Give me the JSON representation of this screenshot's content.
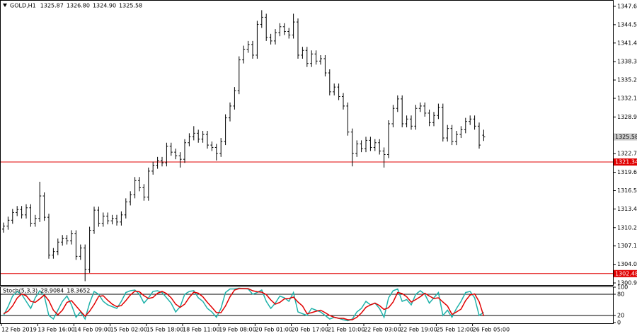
{
  "chart_data": [
    {
      "type": "ohlc",
      "title": "GOLD,H1",
      "last_bar_labels": [
        "1325.87",
        "1326.80",
        "1324.90",
        "1325.58"
      ],
      "color": "#000000",
      "ylim": [
        1300.54,
        1348.6
      ],
      "yticks": [
        1347.65,
        1344.55,
        1341.45,
        {
          "value": 1338.3,
          "label": "1338.30"
        },
        {
          "value": 1335.2,
          "label": "1335.20"
        },
        {
          "value": 1332.1,
          "label": "1332.10"
        },
        1328.95,
        1322.75,
        {
          "value": 1319.6,
          "label": "1319.60"
        },
        {
          "value": 1316.5,
          "label": "1316.50"
        },
        {
          "value": 1313.4,
          "label": "1313.40"
        },
        1310.25,
        1307.15,
        1304.05,
        {
          "value": 1300.9,
          "label": "1300.90"
        }
      ],
      "hlines": [
        {
          "value": 1321.34,
          "color": "#e00000"
        },
        {
          "value": 1302.48,
          "color": "#e00000"
        }
      ],
      "categories": [
        "12 Feb 2019",
        null,
        null,
        null,
        null,
        null,
        null,
        null,
        "13 Feb 16:00",
        null,
        null,
        null,
        null,
        null,
        null,
        null,
        "14 Feb 09:00",
        null,
        null,
        null,
        null,
        null,
        null,
        null,
        "15 Feb 02:00",
        null,
        null,
        null,
        null,
        null,
        null,
        null,
        "15 Feb 18:00",
        null,
        null,
        null,
        null,
        null,
        null,
        null,
        "18 Feb 11:00",
        null,
        null,
        null,
        null,
        null,
        null,
        null,
        "19 Feb 08:00",
        null,
        null,
        null,
        null,
        null,
        null,
        null,
        "20 Feb 01:00",
        null,
        null,
        null,
        null,
        null,
        null,
        null,
        "20 Feb 17:00",
        null,
        null,
        null,
        null,
        null,
        null,
        null,
        "21 Feb 10:00",
        null,
        null,
        null,
        null,
        null,
        null,
        null,
        "22 Feb 03:00",
        null,
        null,
        null,
        null,
        null,
        null,
        null,
        "22 Feb 19:00",
        null,
        null,
        null,
        null,
        null,
        null,
        null,
        "25 Feb 12:00",
        null,
        null,
        null,
        null,
        null,
        null,
        null,
        "26 Feb 05:00",
        null,
        null
      ],
      "ohlc": [
        [
          1310.0,
          1311.1,
          1309.4,
          1310.5
        ],
        [
          1310.5,
          1312.1,
          1309.9,
          1311.5
        ],
        [
          1311.5,
          1313.4,
          1310.9,
          1312.8
        ],
        [
          1312.8,
          1313.9,
          1312.2,
          1313.3
        ],
        [
          1313.3,
          1313.9,
          1311.8,
          1312.4
        ],
        [
          1312.4,
          1314.2,
          1311.8,
          1313.6
        ],
        [
          1313.6,
          1314.2,
          1310.4,
          1311.0
        ],
        [
          1311.0,
          1312.4,
          1310.4,
          1311.8
        ],
        [
          1311.8,
          1318.0,
          1311.2,
          1315.6
        ],
        [
          1315.6,
          1316.2,
          1311.4,
          1312.0
        ],
        [
          1312.0,
          1312.6,
          1305.0,
          1305.6
        ],
        [
          1305.6,
          1306.8,
          1305.0,
          1306.2
        ],
        [
          1306.2,
          1308.4,
          1305.6,
          1307.8
        ],
        [
          1307.8,
          1309.0,
          1307.2,
          1308.4
        ],
        [
          1308.4,
          1309.0,
          1307.4,
          1308.0
        ],
        [
          1308.0,
          1309.8,
          1307.4,
          1309.2
        ],
        [
          1309.2,
          1309.8,
          1304.8,
          1305.4
        ],
        [
          1305.4,
          1307.4,
          1304.8,
          1306.8
        ],
        [
          1306.8,
          1307.4,
          1301.2,
          1303.2
        ],
        [
          1303.2,
          1310.4,
          1302.6,
          1309.8
        ],
        [
          1309.8,
          1313.8,
          1309.2,
          1313.2
        ],
        [
          1313.2,
          1313.8,
          1310.4,
          1311.0
        ],
        [
          1311.0,
          1312.8,
          1310.4,
          1312.2
        ],
        [
          1312.2,
          1312.8,
          1310.8,
          1311.4
        ],
        [
          1311.4,
          1312.4,
          1310.8,
          1311.8
        ],
        [
          1311.8,
          1312.4,
          1310.6,
          1311.2
        ],
        [
          1311.2,
          1313.0,
          1310.6,
          1312.4
        ],
        [
          1312.4,
          1315.2,
          1311.8,
          1314.6
        ],
        [
          1314.6,
          1316.4,
          1314.0,
          1315.8
        ],
        [
          1315.8,
          1318.8,
          1315.2,
          1318.2
        ],
        [
          1318.2,
          1318.8,
          1316.4,
          1317.0
        ],
        [
          1317.0,
          1317.6,
          1314.8,
          1315.4
        ],
        [
          1315.4,
          1320.4,
          1314.8,
          1319.8
        ],
        [
          1319.8,
          1321.4,
          1319.2,
          1320.8
        ],
        [
          1320.8,
          1322.2,
          1320.2,
          1321.6
        ],
        [
          1321.6,
          1322.2,
          1320.6,
          1321.2
        ],
        [
          1321.2,
          1324.6,
          1320.6,
          1324.0
        ],
        [
          1324.0,
          1324.6,
          1322.4,
          1323.0
        ],
        [
          1323.0,
          1323.6,
          1321.8,
          1322.4
        ],
        [
          1322.4,
          1323.0,
          1320.4,
          1321.8
        ],
        [
          1321.8,
          1325.2,
          1321.2,
          1324.6
        ],
        [
          1324.6,
          1326.2,
          1324.0,
          1325.6
        ],
        [
          1325.6,
          1327.4,
          1325.0,
          1326.2
        ],
        [
          1326.2,
          1326.8,
          1324.6,
          1325.2
        ],
        [
          1325.2,
          1326.6,
          1324.6,
          1326.0
        ],
        [
          1326.0,
          1326.6,
          1323.6,
          1324.2
        ],
        [
          1324.2,
          1324.8,
          1323.2,
          1323.8
        ],
        [
          1323.8,
          1324.4,
          1321.6,
          1322.8
        ],
        [
          1322.8,
          1325.4,
          1322.2,
          1324.8
        ],
        [
          1324.8,
          1329.4,
          1324.2,
          1328.8
        ],
        [
          1328.8,
          1331.4,
          1328.2,
          1330.8
        ],
        [
          1330.8,
          1334.0,
          1330.2,
          1333.4
        ],
        [
          1333.4,
          1339.2,
          1332.8,
          1338.6
        ],
        [
          1338.6,
          1341.0,
          1338.0,
          1340.4
        ],
        [
          1340.4,
          1341.8,
          1339.8,
          1341.2
        ],
        [
          1341.2,
          1341.8,
          1338.8,
          1339.4
        ],
        [
          1339.4,
          1345.2,
          1338.8,
          1344.6
        ],
        [
          1344.6,
          1347.0,
          1344.0,
          1345.8
        ],
        [
          1345.8,
          1346.4,
          1341.8,
          1342.4
        ],
        [
          1342.4,
          1343.0,
          1341.2,
          1341.8
        ],
        [
          1341.8,
          1343.8,
          1341.2,
          1343.2
        ],
        [
          1343.2,
          1344.8,
          1342.6,
          1344.2
        ],
        [
          1344.2,
          1344.8,
          1342.8,
          1343.4
        ],
        [
          1343.4,
          1344.0,
          1342.2,
          1342.8
        ],
        [
          1342.8,
          1346.4,
          1342.2,
          1345.0
        ],
        [
          1345.0,
          1345.6,
          1338.8,
          1339.4
        ],
        [
          1339.4,
          1340.8,
          1338.8,
          1340.2
        ],
        [
          1340.2,
          1340.8,
          1337.4,
          1338.0
        ],
        [
          1338.0,
          1340.2,
          1337.4,
          1339.6
        ],
        [
          1339.6,
          1340.2,
          1337.8,
          1338.4
        ],
        [
          1338.4,
          1339.4,
          1337.8,
          1338.8
        ],
        [
          1338.8,
          1339.4,
          1335.8,
          1336.4
        ],
        [
          1336.4,
          1337.0,
          1332.6,
          1333.2
        ],
        [
          1333.2,
          1334.6,
          1332.6,
          1334.0
        ],
        [
          1334.0,
          1334.6,
          1331.8,
          1332.4
        ],
        [
          1332.4,
          1333.0,
          1330.2,
          1330.8
        ],
        [
          1330.8,
          1331.4,
          1325.8,
          1326.4
        ],
        [
          1326.4,
          1327.0,
          1320.6,
          1322.8
        ],
        [
          1322.8,
          1325.0,
          1322.2,
          1324.4
        ],
        [
          1324.4,
          1325.0,
          1323.0,
          1323.6
        ],
        [
          1323.6,
          1325.6,
          1323.0,
          1325.0
        ],
        [
          1325.0,
          1325.6,
          1323.2,
          1323.8
        ],
        [
          1323.8,
          1325.2,
          1323.2,
          1324.6
        ],
        [
          1324.6,
          1325.2,
          1322.6,
          1323.2
        ],
        [
          1323.2,
          1323.8,
          1320.4,
          1322.6
        ],
        [
          1322.6,
          1328.4,
          1322.0,
          1327.8
        ],
        [
          1327.8,
          1331.0,
          1327.2,
          1330.4
        ],
        [
          1330.4,
          1332.6,
          1329.8,
          1332.0
        ],
        [
          1332.0,
          1332.6,
          1327.2,
          1327.8
        ],
        [
          1327.8,
          1329.2,
          1327.2,
          1328.6
        ],
        [
          1328.6,
          1329.2,
          1326.8,
          1327.4
        ],
        [
          1327.4,
          1331.0,
          1326.8,
          1330.4
        ],
        [
          1330.4,
          1331.4,
          1329.8,
          1330.8
        ],
        [
          1330.8,
          1331.4,
          1329.0,
          1329.6
        ],
        [
          1329.6,
          1330.2,
          1327.4,
          1328.0
        ],
        [
          1328.0,
          1329.8,
          1327.4,
          1329.2
        ],
        [
          1329.2,
          1331.2,
          1328.6,
          1330.6
        ],
        [
          1330.6,
          1331.2,
          1324.8,
          1325.4
        ],
        [
          1325.4,
          1327.6,
          1324.8,
          1327.0
        ],
        [
          1327.0,
          1327.6,
          1324.2,
          1324.8
        ],
        [
          1324.8,
          1326.6,
          1324.2,
          1326.0
        ],
        [
          1326.0,
          1327.4,
          1325.4,
          1326.8
        ],
        [
          1326.8,
          1328.8,
          1326.2,
          1328.2
        ],
        [
          1328.2,
          1329.2,
          1327.6,
          1328.6
        ],
        [
          1328.6,
          1329.2,
          1326.8,
          1327.4
        ],
        [
          1327.4,
          1328.0,
          1323.6,
          1324.2
        ],
        [
          1325.87,
          1326.8,
          1324.9,
          1325.58
        ]
      ]
    },
    {
      "type": "line",
      "title": "Stoch(5,3,3)",
      "ylim": [
        0,
        100
      ],
      "yticks": [
        100,
        80,
        20,
        0
      ],
      "levels": [
        80,
        20
      ],
      "series": [
        {
          "name": "Main",
          "color": "#20b2aa",
          "values": [
            20,
            45,
            75,
            88,
            80,
            60,
            40,
            70,
            90,
            75,
            20,
            10,
            35,
            60,
            75,
            50,
            15,
            30,
            10,
            55,
            88,
            80,
            60,
            50,
            45,
            40,
            60,
            85,
            90,
            92,
            80,
            55,
            70,
            88,
            90,
            85,
            70,
            55,
            30,
            45,
            80,
            88,
            90,
            70,
            60,
            40,
            30,
            15,
            40,
            85,
            95,
            95,
            97,
            96,
            95,
            80,
            85,
            92,
            60,
            40,
            55,
            75,
            70,
            60,
            85,
            30,
            25,
            20,
            40,
            35,
            30,
            20,
            10,
            15,
            12,
            8,
            5,
            10,
            30,
            40,
            60,
            50,
            55,
            40,
            15,
            70,
            90,
            95,
            60,
            65,
            50,
            80,
            90,
            80,
            55,
            70,
            85,
            20,
            35,
            15,
            40,
            60,
            85,
            88,
            70,
            20,
            28.9084
          ]
        },
        {
          "name": "Signal",
          "color": "#e00000",
          "values": [
            25,
            32,
            47,
            69,
            81,
            76,
            60,
            57,
            67,
            78,
            62,
            35,
            22,
            35,
            57,
            62,
            47,
            32,
            18,
            32,
            51,
            74,
            76,
            63,
            52,
            45,
            48,
            62,
            78,
            89,
            87,
            76,
            68,
            71,
            83,
            88,
            82,
            70,
            52,
            43,
            52,
            71,
            86,
            83,
            73,
            57,
            43,
            28,
            28,
            47,
            73,
            92,
            96,
            96,
            96,
            90,
            87,
            86,
            79,
            64,
            52,
            57,
            67,
            68,
            72,
            58,
            47,
            25,
            28,
            32,
            35,
            28,
            20,
            15,
            12,
            12,
            8,
            8,
            15,
            27,
            43,
            50,
            55,
            48,
            37,
            42,
            58,
            85,
            82,
            73,
            58,
            65,
            73,
            83,
            75,
            68,
            70,
            58,
            47,
            23,
            30,
            38,
            62,
            78,
            81,
            59,
            18.3652
          ]
        }
      ]
    }
  ]
}
